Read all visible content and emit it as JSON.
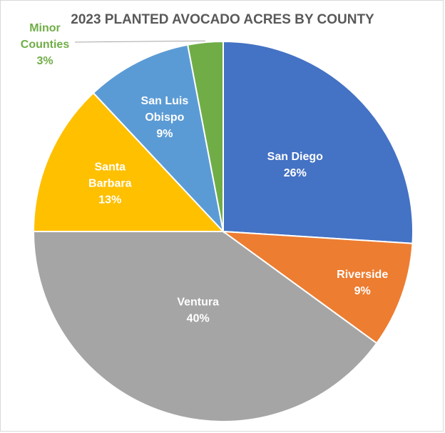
{
  "chart_data": {
    "type": "pie",
    "title": "2023 PLANTED AVOCADO ACRES BY COUNTY",
    "slices": [
      {
        "label_lines": [
          "San Diego"
        ],
        "percent_label": "26%",
        "value": 26,
        "color": "#4472c4"
      },
      {
        "label_lines": [
          "Riverside"
        ],
        "percent_label": "9%",
        "value": 9,
        "color": "#ed7d31"
      },
      {
        "label_lines": [
          "Ventura"
        ],
        "percent_label": "40%",
        "value": 40,
        "color": "#a5a5a5"
      },
      {
        "label_lines": [
          "Santa",
          "Barbara"
        ],
        "percent_label": "13%",
        "value": 13,
        "color": "#ffc000"
      },
      {
        "label_lines": [
          "San Luis",
          "Obispo"
        ],
        "percent_label": "9%",
        "value": 9,
        "color": "#5b9bd5"
      },
      {
        "label_lines": [
          "Minor",
          "Counties"
        ],
        "percent_label": "3%",
        "value": 3,
        "color": "#70ad47"
      }
    ],
    "start_angle_deg": 0,
    "direction": "clockwise",
    "legend": "none",
    "data_labels": "category and percent"
  }
}
